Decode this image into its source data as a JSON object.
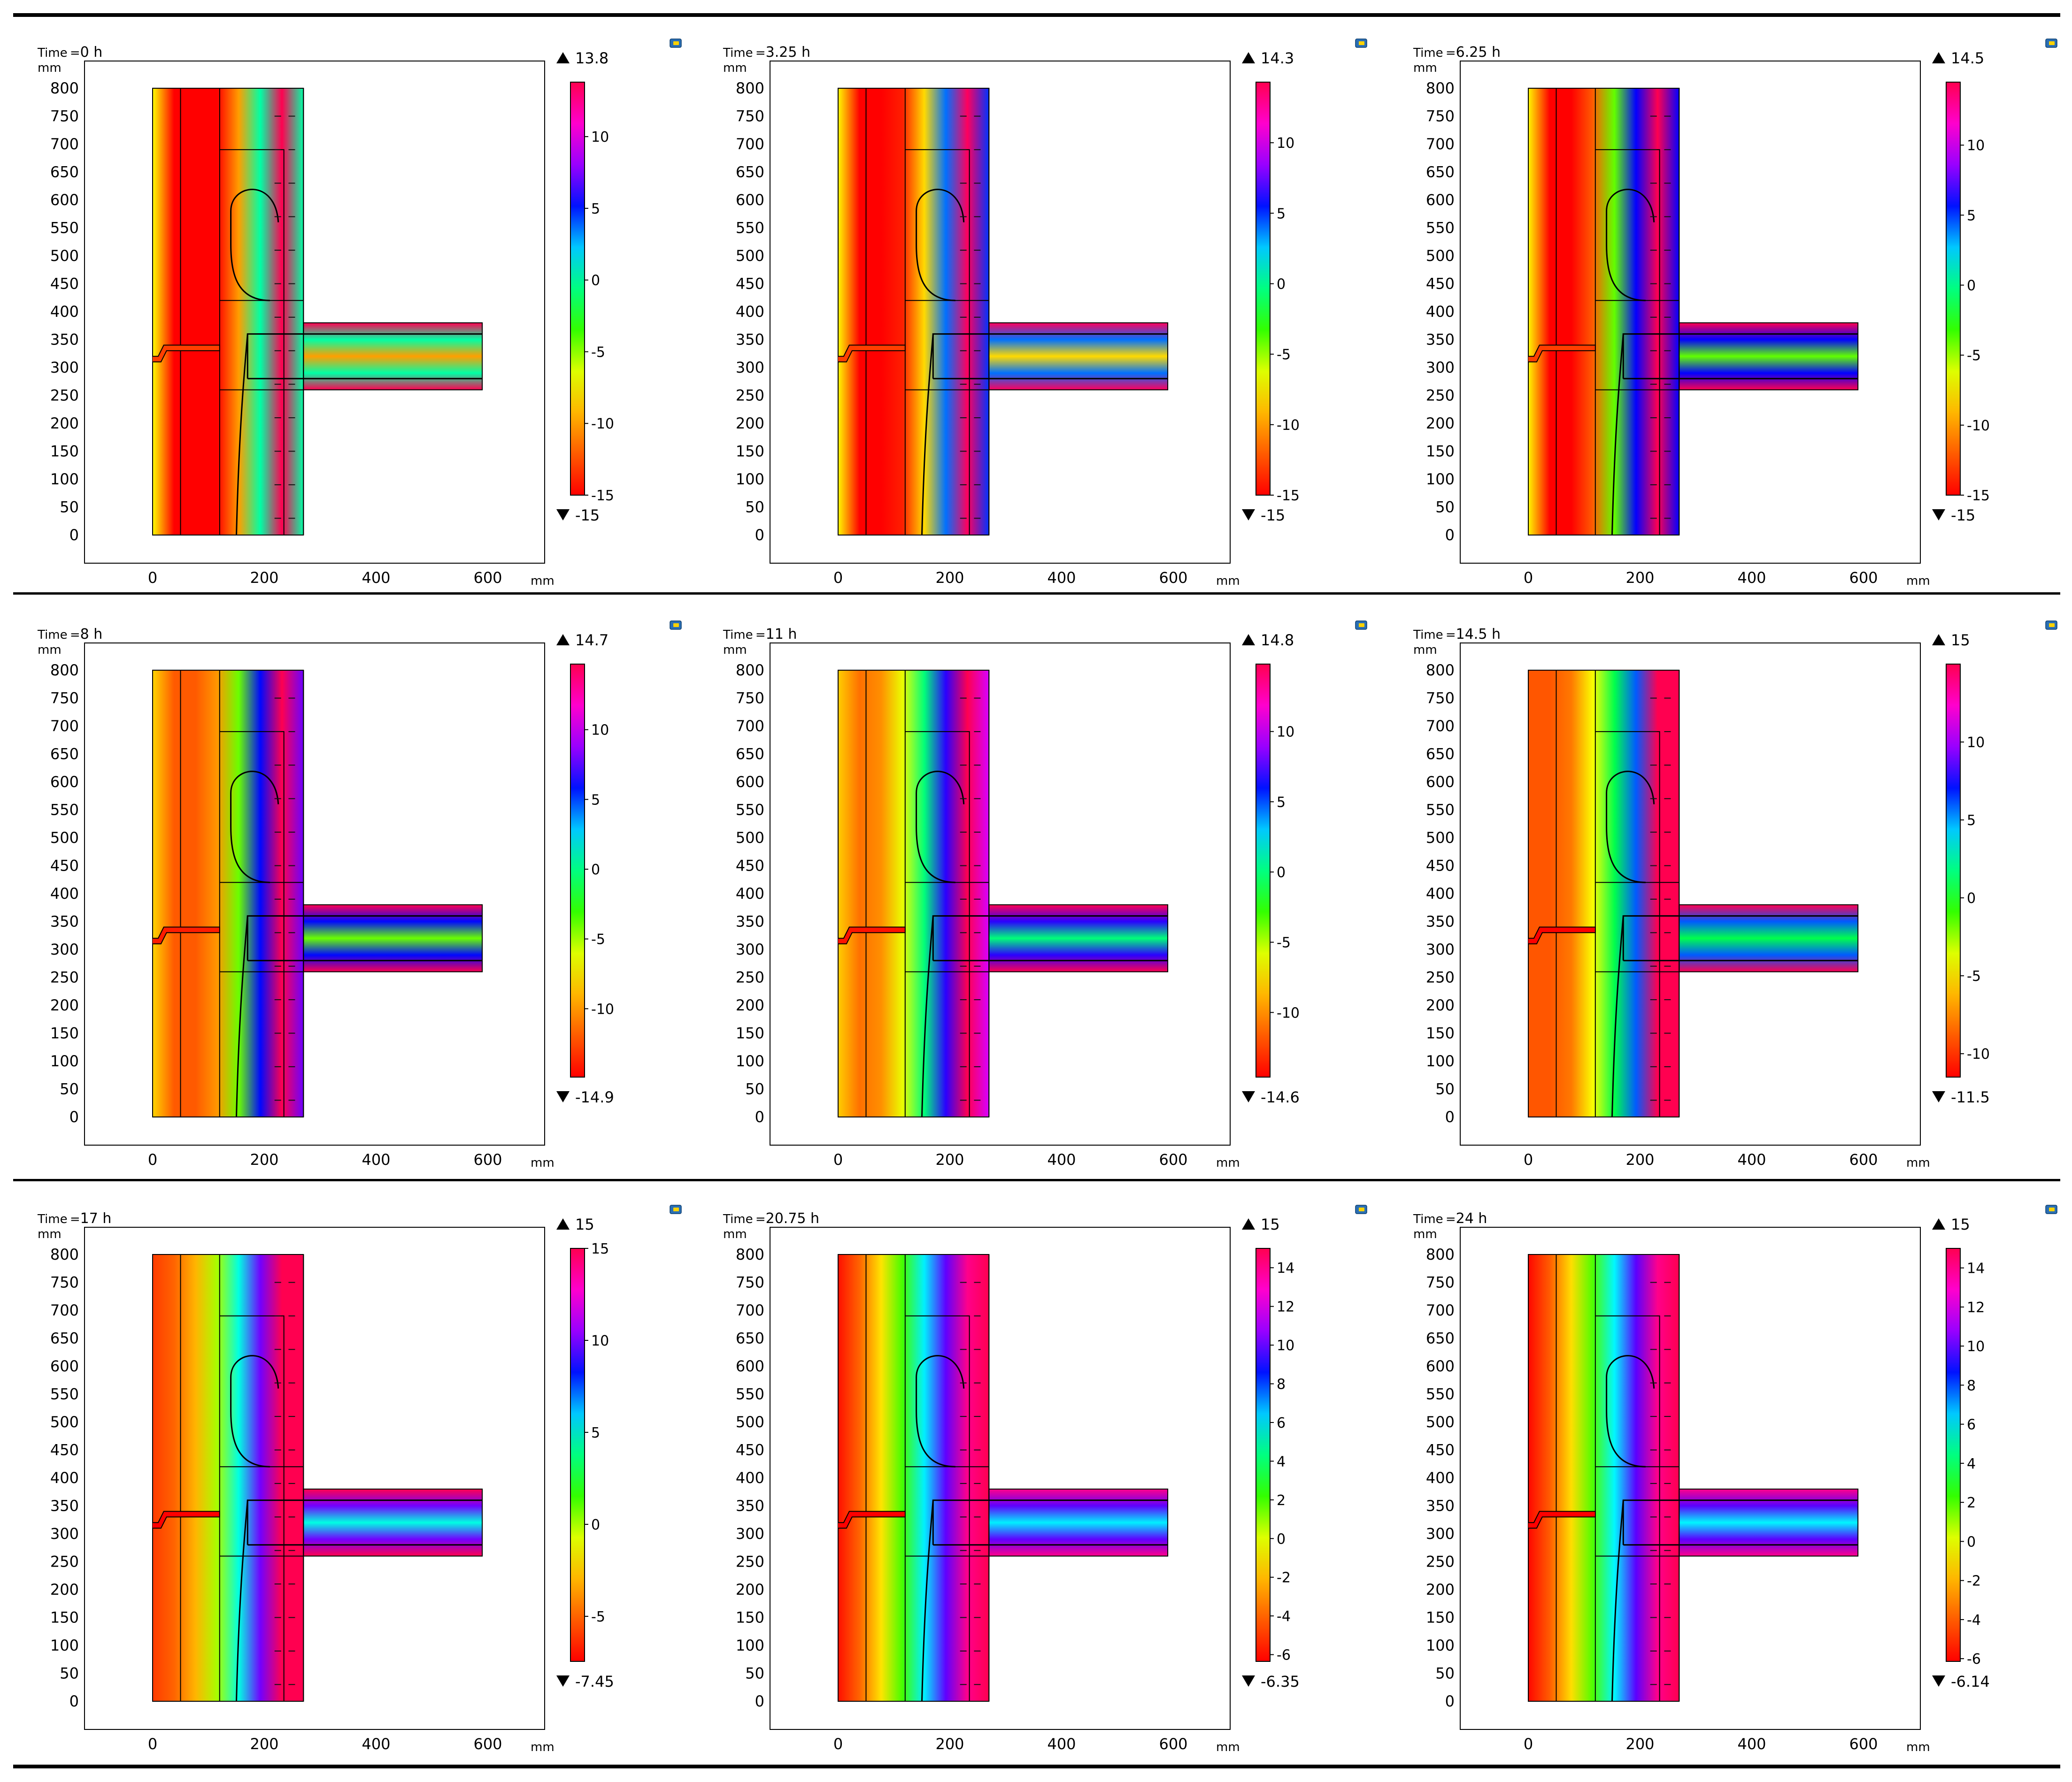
{
  "figure": {
    "units_label": "mm",
    "time_prefix": "Time =",
    "x_ticks": [
      "0",
      "200",
      "400",
      "600"
    ],
    "y_ticks": [
      "0",
      "50",
      "100",
      "150",
      "200",
      "250",
      "300",
      "350",
      "400",
      "450",
      "500",
      "550",
      "600",
      "650",
      "700",
      "750",
      "800"
    ],
    "logo_icon": "comsol-logo-icon",
    "palette": [
      "#ff0000",
      "#ff8000",
      "#ffff00",
      "#00ff00",
      "#00ffff",
      "#0000ff",
      "#ff00ff",
      "#ff0066"
    ]
  },
  "panels": [
    {
      "time": "0 h",
      "max": "13.8",
      "min": "-15",
      "cb_ticks": [
        "10",
        "5",
        "0",
        "-5",
        "-10",
        "-15"
      ],
      "temps": [
        -7,
        -15,
        -15,
        -15,
        -10,
        0,
        13.8,
        0
      ]
    },
    {
      "time": "3.25 h",
      "max": "14.3",
      "min": "-15",
      "cb_ticks": [
        "10",
        "5",
        "0",
        "-5",
        "-10",
        "-15"
      ],
      "temps": [
        -7,
        -15,
        -15,
        -14,
        -8,
        4,
        14,
        5
      ]
    },
    {
      "time": "6.25 h",
      "max": "14.5",
      "min": "-15",
      "cb_ticks": [
        "10",
        "5",
        "0",
        "-5",
        "-10",
        "-15"
      ],
      "temps": [
        -7,
        -15,
        -15,
        -12,
        -4,
        6,
        14.5,
        6
      ]
    },
    {
      "time": "8 h",
      "max": "14.7",
      "min": "-14.9",
      "cb_ticks": [
        "10",
        "5",
        "0",
        "-5",
        "-10"
      ],
      "temps": [
        -8,
        -12,
        -12,
        -10,
        -4,
        6,
        14.7,
        8
      ]
    },
    {
      "time": "11 h",
      "max": "14.8",
      "min": "-14.6",
      "cb_ticks": [
        "10",
        "5",
        "0",
        "-5",
        "-10"
      ],
      "temps": [
        -8,
        -11,
        -10,
        -6,
        0,
        7,
        14.8,
        10
      ]
    },
    {
      "time": "14.5 h",
      "max": "15",
      "min": "-11.5",
      "cb_ticks": [
        "10",
        "5",
        "0",
        "-5",
        "-10"
      ],
      "temps": [
        -9,
        -9,
        -8,
        -4,
        1,
        6,
        15,
        15
      ]
    },
    {
      "time": "17 h",
      "max": "15",
      "min": "-7.45",
      "cb_ticks": [
        "15",
        "10",
        "5",
        "0",
        "-5"
      ],
      "temps": [
        -6,
        -5,
        -3,
        0,
        5,
        10,
        15,
        15
      ]
    },
    {
      "time": "20.75 h",
      "max": "15",
      "min": "-6.35",
      "cb_ticks": [
        "14",
        "12",
        "10",
        "8",
        "6",
        "4",
        "2",
        "0",
        "-2",
        "-4",
        "-6"
      ],
      "temps": [
        -6,
        -4,
        -1,
        2,
        6,
        10,
        14,
        15
      ]
    },
    {
      "time": "24 h",
      "max": "15",
      "min": "-6.14",
      "cb_ticks": [
        "14",
        "12",
        "10",
        "8",
        "6",
        "4",
        "2",
        "0",
        "-2",
        "-4",
        "-6"
      ],
      "temps": [
        -6,
        -4,
        -1,
        2,
        6,
        10,
        14,
        15
      ]
    }
  ]
}
